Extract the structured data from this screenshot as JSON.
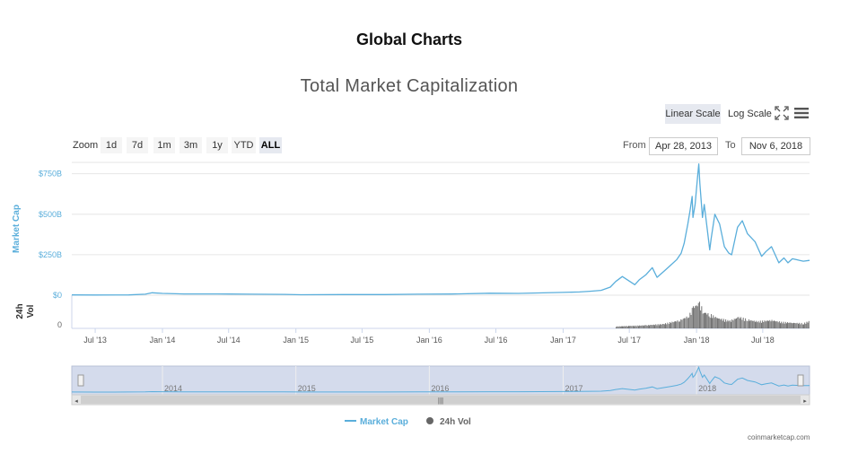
{
  "page": {
    "title": "Global Charts"
  },
  "toolbar": {
    "linear_label": "Linear Scale",
    "log_label": "Log Scale",
    "expand_icon": "expand-icon",
    "menu_icon": "hamburger-menu-icon"
  },
  "zoom": {
    "label": "Zoom",
    "buttons": [
      "1d",
      "7d",
      "1m",
      "3m",
      "1y",
      "YTD",
      "ALL"
    ],
    "active": "ALL"
  },
  "range": {
    "from_label": "From",
    "from_value": "Apr 28, 2013",
    "to_label": "To",
    "to_value": "Nov 6, 2018"
  },
  "credit": "coinmarketcap.com",
  "colors": {
    "market_cap": "#5aaedb",
    "volume": "#666666",
    "navigator_bg": "#d4dbec"
  },
  "chart_data": {
    "type": "line",
    "title": "Total Market Capitalization",
    "x_range": [
      "2013-04-28",
      "2018-11-06"
    ],
    "x_tick_labels": [
      "Jul '13",
      "Jan '14",
      "Jul '14",
      "Jan '15",
      "Jul '15",
      "Jan '16",
      "Jul '16",
      "Jan '17",
      "Jul '17",
      "Jan '18",
      "Jul '18"
    ],
    "navigator_labels": [
      "2014",
      "2015",
      "2016",
      "2017",
      "2018"
    ],
    "grid": true,
    "legend_position": "bottom-center",
    "market_cap_axis": {
      "label": "Market Cap",
      "tick_labels": [
        "$0",
        "$250B",
        "$500B",
        "$750B"
      ],
      "ticks": [
        0,
        250,
        500,
        750
      ],
      "ylim": [
        0,
        820
      ],
      "unit": "B USD"
    },
    "volume_axis": {
      "label": "24h Vol",
      "tick_labels": [
        "0"
      ]
    },
    "series": [
      {
        "name": "Market Cap",
        "axis": "market_cap",
        "points": [
          [
            "2013-04-28",
            1.5
          ],
          [
            "2013-07-01",
            1.2
          ],
          [
            "2013-10-01",
            1.8
          ],
          [
            "2013-11-15",
            6
          ],
          [
            "2013-12-04",
            15
          ],
          [
            "2014-01-01",
            11
          ],
          [
            "2014-03-01",
            8
          ],
          [
            "2014-06-01",
            8
          ],
          [
            "2014-09-01",
            6
          ],
          [
            "2014-12-01",
            5
          ],
          [
            "2015-01-15",
            3
          ],
          [
            "2015-06-01",
            4
          ],
          [
            "2015-09-01",
            4
          ],
          [
            "2015-12-01",
            6
          ],
          [
            "2016-03-01",
            7
          ],
          [
            "2016-06-15",
            12
          ],
          [
            "2016-09-01",
            11
          ],
          [
            "2016-12-31",
            17
          ],
          [
            "2017-02-15",
            20
          ],
          [
            "2017-03-20",
            25
          ],
          [
            "2017-04-15",
            30
          ],
          [
            "2017-05-10",
            50
          ],
          [
            "2017-05-25",
            85
          ],
          [
            "2017-06-12",
            115
          ],
          [
            "2017-07-16",
            65
          ],
          [
            "2017-07-28",
            95
          ],
          [
            "2017-08-15",
            125
          ],
          [
            "2017-09-02",
            170
          ],
          [
            "2017-09-15",
            110
          ],
          [
            "2017-10-05",
            150
          ],
          [
            "2017-10-22",
            185
          ],
          [
            "2017-11-08",
            220
          ],
          [
            "2017-11-20",
            260
          ],
          [
            "2017-11-28",
            320
          ],
          [
            "2017-12-08",
            440
          ],
          [
            "2017-12-14",
            520
          ],
          [
            "2017-12-20",
            610
          ],
          [
            "2017-12-22",
            480
          ],
          [
            "2017-12-28",
            560
          ],
          [
            "2018-01-04",
            740
          ],
          [
            "2018-01-07",
            810
          ],
          [
            "2018-01-10",
            690
          ],
          [
            "2018-01-17",
            480
          ],
          [
            "2018-01-22",
            560
          ],
          [
            "2018-02-06",
            280
          ],
          [
            "2018-02-10",
            350
          ],
          [
            "2018-02-20",
            500
          ],
          [
            "2018-03-05",
            440
          ],
          [
            "2018-03-18",
            300
          ],
          [
            "2018-03-30",
            260
          ],
          [
            "2018-04-07",
            250
          ],
          [
            "2018-04-23",
            420
          ],
          [
            "2018-05-06",
            460
          ],
          [
            "2018-05-20",
            380
          ],
          [
            "2018-06-10",
            330
          ],
          [
            "2018-06-28",
            240
          ],
          [
            "2018-07-10",
            270
          ],
          [
            "2018-07-25",
            300
          ],
          [
            "2018-08-14",
            200
          ],
          [
            "2018-08-28",
            230
          ],
          [
            "2018-09-08",
            200
          ],
          [
            "2018-09-20",
            225
          ],
          [
            "2018-10-10",
            215
          ],
          [
            "2018-10-20",
            210
          ],
          [
            "2018-11-06",
            215
          ]
        ]
      },
      {
        "name": "24h Vol",
        "axis": "volume",
        "points": [
          [
            "2017-05-25",
            3
          ],
          [
            "2017-07-01",
            4
          ],
          [
            "2017-08-15",
            5
          ],
          [
            "2017-10-01",
            7
          ],
          [
            "2017-11-15",
            13
          ],
          [
            "2017-12-10",
            20
          ],
          [
            "2017-12-22",
            34
          ],
          [
            "2018-01-08",
            40
          ],
          [
            "2018-01-20",
            26
          ],
          [
            "2018-02-06",
            22
          ],
          [
            "2018-03-01",
            16
          ],
          [
            "2018-04-01",
            12
          ],
          [
            "2018-04-25",
            18
          ],
          [
            "2018-05-20",
            14
          ],
          [
            "2018-06-15",
            11
          ],
          [
            "2018-07-25",
            13
          ],
          [
            "2018-08-20",
            10
          ],
          [
            "2018-09-20",
            9
          ],
          [
            "2018-10-20",
            8
          ],
          [
            "2018-11-06",
            12
          ]
        ]
      }
    ]
  }
}
